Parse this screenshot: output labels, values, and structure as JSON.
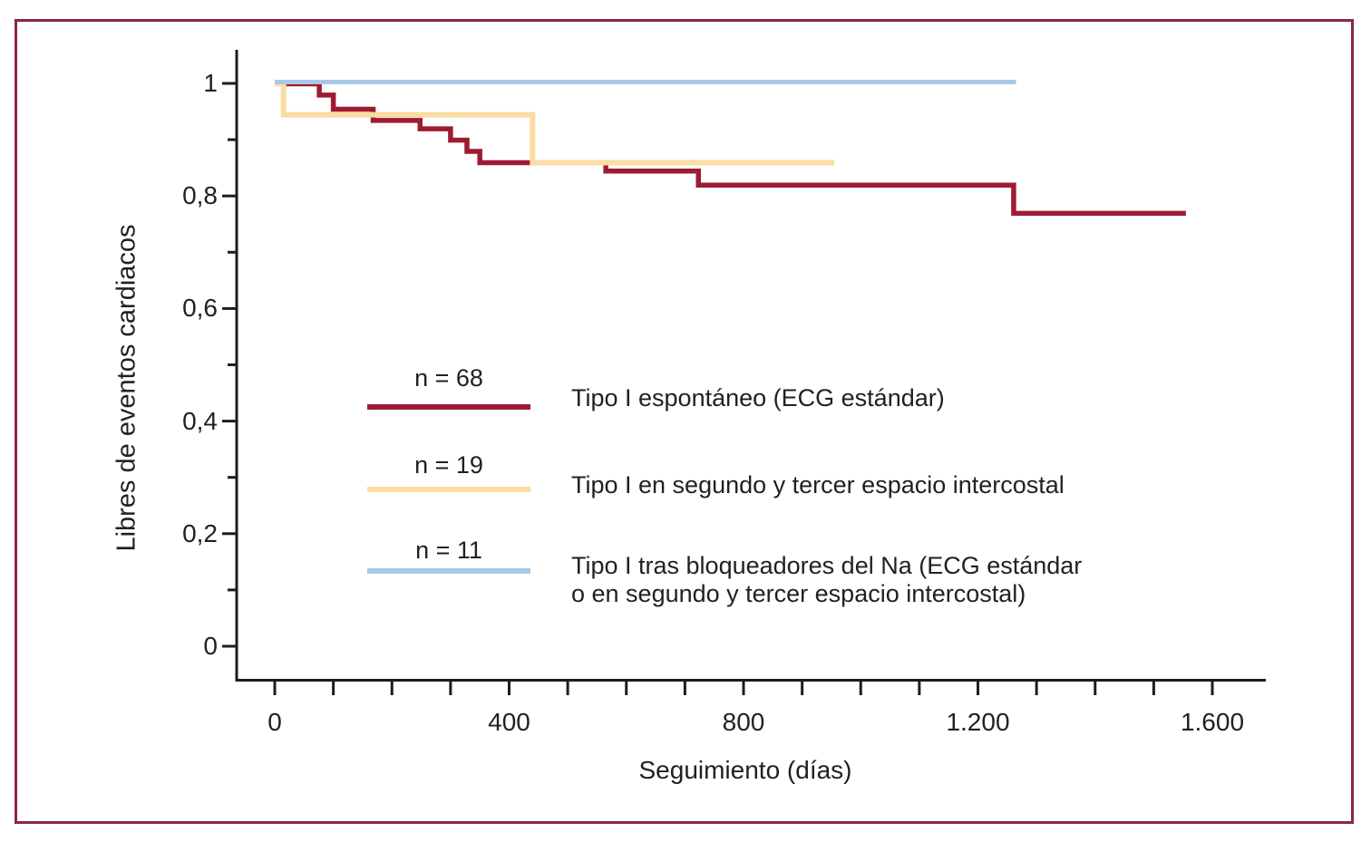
{
  "figure": {
    "border_color": "#8c2740",
    "background_color": "#ffffff",
    "text_color": "#231f20",
    "axis_color": "#1d1d1b"
  },
  "chart_data": {
    "type": "line",
    "subtype": "kaplan-meier-step",
    "title": "",
    "xlabel": "Seguimiento (días)",
    "ylabel": "Libres de eventos cardiacos",
    "xlim": [
      0,
      1700
    ],
    "ylim": [
      0,
      1.04
    ],
    "grid": false,
    "legend_position": "inside-center-left",
    "x_major_ticks": [
      0,
      400,
      800,
      1200,
      1600
    ],
    "x_major_tick_labels": [
      "0",
      "400",
      "800",
      "1.200",
      "1.600"
    ],
    "x_minor_tick_step": 100,
    "x_minor_tick_max": 1600,
    "y_major_ticks": [
      1,
      0.8,
      0.6,
      0.4,
      0.2,
      0
    ],
    "y_major_tick_labels": [
      "1",
      "0,8",
      "0,6",
      "0,4",
      "0,2",
      "0"
    ],
    "y_minor_ticks": [
      0.9,
      0.7,
      0.5,
      0.3,
      0.1
    ],
    "series": [
      {
        "name": "Tipo I espontáneo (ECG estándar)",
        "n": 68,
        "color": "#9e1b33",
        "points": [
          [
            0,
            1.0
          ],
          [
            76,
            0.98
          ],
          [
            100,
            0.955
          ],
          [
            168,
            0.935
          ],
          [
            248,
            0.92
          ],
          [
            300,
            0.9
          ],
          [
            328,
            0.88
          ],
          [
            350,
            0.86
          ],
          [
            565,
            0.845
          ],
          [
            723,
            0.82
          ],
          [
            1261,
            0.77
          ]
        ],
        "end_day": 1555
      },
      {
        "name": "Tipo I en segundo y tercer espacio intercostal",
        "n": 19,
        "color": "#fadca4",
        "points": [
          [
            0,
            1.0
          ],
          [
            15,
            0.945
          ],
          [
            440,
            0.86
          ]
        ],
        "end_day": 955
      },
      {
        "name": "Tipo I tras bloqueadores del Na (ECG estándar o en segundo y tercer espacio intercostal)",
        "n": 11,
        "color": "#a8c8e8",
        "points": [
          [
            0,
            1.0
          ]
        ],
        "end_day": 1265
      }
    ]
  },
  "legend": {
    "rows": [
      {
        "n_label": "n = 68",
        "lines": [
          "Tipo I espontáneo (ECG estándar)",
          ""
        ]
      },
      {
        "n_label": "n = 19",
        "lines": [
          "Tipo I en segundo y tercer espacio intercostal",
          ""
        ]
      },
      {
        "n_label": "n = 11",
        "lines": [
          "Tipo I tras bloqueadores del Na (ECG estándar",
          "o en segundo y tercer espacio intercostal)"
        ]
      }
    ]
  }
}
